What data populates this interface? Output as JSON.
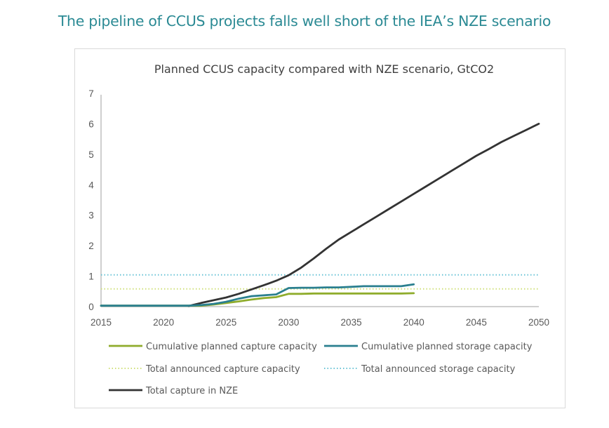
{
  "page": {
    "title": "The pipeline of CCUS projects falls well short of the IEA’s NZE scenario"
  },
  "colors": {
    "title": "#2b8a94",
    "capture": "#8fac2c",
    "storage": "#2a7f8f",
    "announced_capture": "#cfe07a",
    "announced_storage": "#69c3d6",
    "nze": "#333333",
    "axis": "#bfbfbf"
  },
  "chart_data": {
    "type": "line",
    "title": "Planned CCUS capacity compared with NZE scenario, GtCO2",
    "xlabel": "",
    "ylabel": "GtCO2",
    "xlim": [
      2015,
      2050
    ],
    "ylim": [
      0,
      7
    ],
    "x_ticks": [
      2015,
      2020,
      2025,
      2030,
      2035,
      2040,
      2045,
      2050
    ],
    "y_ticks": [
      0,
      1,
      2,
      3,
      4,
      5,
      6,
      7
    ],
    "grid": false,
    "legend_position": "bottom",
    "series": [
      {
        "name": "Cumulative planned capture capacity",
        "key": "capture",
        "style": "solid",
        "x": [
          2015,
          2016,
          2017,
          2018,
          2019,
          2020,
          2021,
          2022,
          2023,
          2024,
          2025,
          2026,
          2027,
          2028,
          2029,
          2030,
          2031,
          2032,
          2033,
          2034,
          2035,
          2036,
          2037,
          2038,
          2039,
          2040
        ],
        "values": [
          0.03,
          0.03,
          0.03,
          0.03,
          0.03,
          0.03,
          0.03,
          0.03,
          0.03,
          0.07,
          0.12,
          0.17,
          0.23,
          0.28,
          0.31,
          0.42,
          0.42,
          0.43,
          0.43,
          0.43,
          0.43,
          0.43,
          0.43,
          0.43,
          0.43,
          0.44
        ]
      },
      {
        "name": "Cumulative planned storage capacity",
        "key": "storage",
        "style": "solid",
        "x": [
          2015,
          2016,
          2017,
          2018,
          2019,
          2020,
          2021,
          2022,
          2023,
          2024,
          2025,
          2026,
          2027,
          2028,
          2029,
          2030,
          2031,
          2032,
          2033,
          2034,
          2035,
          2036,
          2037,
          2038,
          2039,
          2040
        ],
        "values": [
          0.03,
          0.03,
          0.03,
          0.03,
          0.03,
          0.03,
          0.03,
          0.03,
          0.05,
          0.09,
          0.16,
          0.26,
          0.34,
          0.37,
          0.4,
          0.61,
          0.62,
          0.62,
          0.63,
          0.63,
          0.65,
          0.67,
          0.67,
          0.67,
          0.67,
          0.73
        ]
      },
      {
        "name": "Total announced capture capacity",
        "key": "announced_capture",
        "style": "dotted",
        "x": [
          2015,
          2050
        ],
        "values": [
          0.58,
          0.58
        ]
      },
      {
        "name": "Total announced storage capacity",
        "key": "announced_storage",
        "style": "dotted",
        "x": [
          2015,
          2050
        ],
        "values": [
          1.04,
          1.04
        ]
      },
      {
        "name": "Total capture in NZE",
        "key": "nze",
        "style": "solid",
        "x": [
          2022,
          2023,
          2024,
          2025,
          2026,
          2027,
          2028,
          2029,
          2030,
          2031,
          2032,
          2033,
          2034,
          2035,
          2036,
          2037,
          2038,
          2039,
          2040,
          2041,
          2042,
          2043,
          2044,
          2045,
          2046,
          2047,
          2048,
          2049,
          2050
        ],
        "values": [
          0.02,
          0.12,
          0.21,
          0.3,
          0.42,
          0.56,
          0.7,
          0.85,
          1.03,
          1.28,
          1.58,
          1.9,
          2.2,
          2.45,
          2.7,
          2.95,
          3.2,
          3.45,
          3.7,
          3.95,
          4.2,
          4.45,
          4.7,
          4.95,
          5.17,
          5.4,
          5.6,
          5.8,
          6.0
        ]
      }
    ],
    "legend": [
      "Cumulative planned capture capacity",
      "Cumulative planned storage capacity",
      "Total announced capture capacity",
      "Total announced storage capacity",
      "Total capture in NZE"
    ]
  }
}
